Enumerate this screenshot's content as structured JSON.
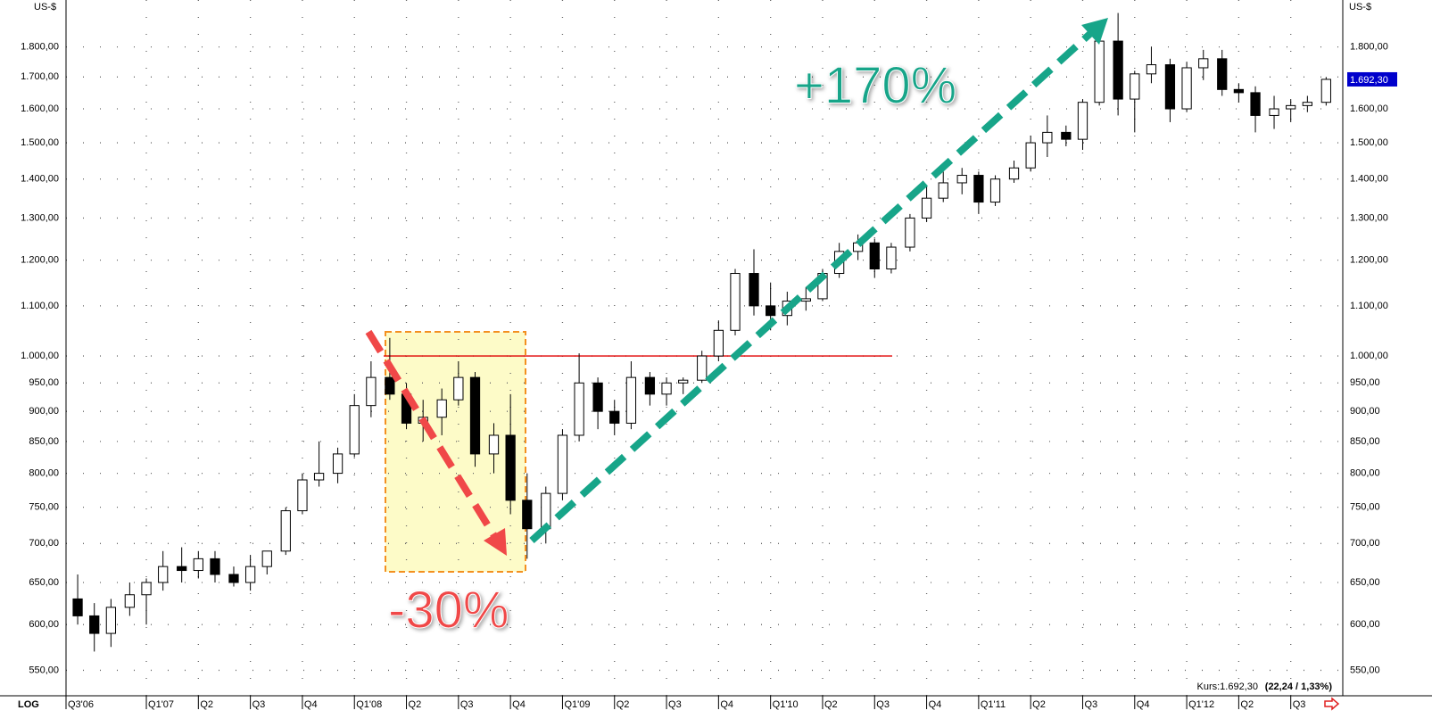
{
  "chart_data": {
    "type": "candlestick",
    "y_axis_label": "US-$",
    "scale_label": "LOG",
    "log_scale": true,
    "grid": true,
    "up_color": "#ffffff",
    "down_color": "#000000",
    "xlim": [
      2006.614,
      2012.75
    ],
    "ylim": [
      524,
      1968
    ],
    "xticks": [
      {
        "value": 2006.614,
        "label": "Q3'06"
      },
      {
        "value": 2007.0,
        "label": "Q1'07"
      },
      {
        "value": 2007.25,
        "label": "Q2"
      },
      {
        "value": 2007.5,
        "label": "Q3"
      },
      {
        "value": 2007.75,
        "label": "Q4"
      },
      {
        "value": 2008.0,
        "label": "Q1'08"
      },
      {
        "value": 2008.25,
        "label": "Q2"
      },
      {
        "value": 2008.5,
        "label": "Q3"
      },
      {
        "value": 2008.75,
        "label": "Q4"
      },
      {
        "value": 2009.0,
        "label": "Q1'09"
      },
      {
        "value": 2009.25,
        "label": "Q2"
      },
      {
        "value": 2009.5,
        "label": "Q3"
      },
      {
        "value": 2009.75,
        "label": "Q4"
      },
      {
        "value": 2010.0,
        "label": "Q1'10"
      },
      {
        "value": 2010.25,
        "label": "Q2"
      },
      {
        "value": 2010.5,
        "label": "Q3"
      },
      {
        "value": 2010.75,
        "label": "Q4"
      },
      {
        "value": 2011.0,
        "label": "Q1'11"
      },
      {
        "value": 2011.25,
        "label": "Q2"
      },
      {
        "value": 2011.5,
        "label": "Q3"
      },
      {
        "value": 2011.75,
        "label": "Q4"
      },
      {
        "value": 2012.0,
        "label": "Q1'12"
      },
      {
        "value": 2012.25,
        "label": "Q2"
      },
      {
        "value": 2012.5,
        "label": "Q3"
      }
    ],
    "yticks": [
      {
        "value": 550,
        "label": "550,00"
      },
      {
        "value": 600,
        "label": "600,00"
      },
      {
        "value": 650,
        "label": "650,00"
      },
      {
        "value": 700,
        "label": "700,00"
      },
      {
        "value": 750,
        "label": "750,00"
      },
      {
        "value": 800,
        "label": "800,00"
      },
      {
        "value": 850,
        "label": "850,00"
      },
      {
        "value": 900,
        "label": "900,00"
      },
      {
        "value": 950,
        "label": "950,00"
      },
      {
        "value": 1000,
        "label": "1.000,00"
      },
      {
        "value": 1100,
        "label": "1.100,00"
      },
      {
        "value": 1200,
        "label": "1.200,00"
      },
      {
        "value": 1300,
        "label": "1.300,00"
      },
      {
        "value": 1400,
        "label": "1.400,00"
      },
      {
        "value": 1500,
        "label": "1.500,00"
      },
      {
        "value": 1600,
        "label": "1.600,00"
      },
      {
        "value": 1700,
        "label": "1.700,00"
      },
      {
        "value": 1800,
        "label": "1.800,00"
      }
    ],
    "x": [
      2006.67,
      2006.75,
      2006.83,
      2006.92,
      2007.0,
      2007.08,
      2007.17,
      2007.25,
      2007.33,
      2007.42,
      2007.5,
      2007.58,
      2007.67,
      2007.75,
      2007.83,
      2007.92,
      2008.0,
      2008.08,
      2008.17,
      2008.25,
      2008.33,
      2008.42,
      2008.5,
      2008.58,
      2008.67,
      2008.75,
      2008.83,
      2008.92,
      2009.0,
      2009.08,
      2009.17,
      2009.25,
      2009.33,
      2009.42,
      2009.5,
      2009.58,
      2009.67,
      2009.75,
      2009.83,
      2009.92,
      2010.0,
      2010.08,
      2010.17,
      2010.25,
      2010.33,
      2010.42,
      2010.5,
      2010.58,
      2010.67,
      2010.75,
      2010.83,
      2010.92,
      2011.0,
      2011.08,
      2011.17,
      2011.25,
      2011.33,
      2011.42,
      2011.5,
      2011.58,
      2011.67,
      2011.75,
      2011.83,
      2011.92,
      2012.0,
      2012.08,
      2012.17,
      2012.25,
      2012.33,
      2012.42,
      2012.5,
      2012.58,
      2012.67
    ],
    "open": [
      630,
      610,
      590,
      620,
      635,
      650,
      670,
      665,
      680,
      660,
      650,
      670,
      690,
      745,
      790,
      800,
      830,
      910,
      960,
      930,
      880,
      890,
      920,
      960,
      830,
      860,
      760,
      720,
      770,
      860,
      950,
      900,
      880,
      960,
      930,
      950,
      955,
      1000,
      1050,
      1170,
      1100,
      1080,
      1110,
      1115,
      1170,
      1220,
      1240,
      1180,
      1230,
      1300,
      1350,
      1390,
      1410,
      1340,
      1400,
      1430,
      1500,
      1530,
      1510,
      1620,
      1820,
      1630,
      1710,
      1740,
      1600,
      1730,
      1760,
      1660,
      1650,
      1580,
      1600,
      1610,
      1620
    ],
    "high": [
      660,
      625,
      630,
      650,
      655,
      690,
      695,
      690,
      690,
      670,
      685,
      690,
      750,
      800,
      850,
      840,
      930,
      990,
      1035,
      950,
      920,
      940,
      990,
      970,
      880,
      930,
      800,
      780,
      870,
      1005,
      960,
      920,
      990,
      970,
      960,
      960,
      1010,
      1070,
      1180,
      1225,
      1150,
      1130,
      1140,
      1180,
      1240,
      1260,
      1250,
      1240,
      1310,
      1380,
      1420,
      1430,
      1420,
      1410,
      1450,
      1520,
      1580,
      1550,
      1630,
      1830,
      1920,
      1720,
      1800,
      1760,
      1750,
      1790,
      1790,
      1680,
      1670,
      1640,
      1630,
      1640,
      1700
    ],
    "low": [
      600,
      570,
      575,
      610,
      600,
      640,
      650,
      655,
      650,
      645,
      640,
      660,
      685,
      740,
      780,
      785,
      825,
      890,
      920,
      870,
      850,
      860,
      910,
      810,
      800,
      740,
      680,
      700,
      760,
      850,
      870,
      860,
      870,
      910,
      910,
      930,
      950,
      990,
      1040,
      1080,
      1050,
      1060,
      1090,
      1110,
      1160,
      1200,
      1160,
      1170,
      1220,
      1290,
      1340,
      1360,
      1310,
      1330,
      1390,
      1420,
      1460,
      1490,
      1480,
      1610,
      1580,
      1530,
      1680,
      1560,
      1590,
      1690,
      1640,
      1620,
      1530,
      1540,
      1560,
      1590,
      1610
    ],
    "close": [
      610,
      590,
      620,
      635,
      650,
      670,
      665,
      680,
      660,
      650,
      670,
      690,
      745,
      790,
      800,
      830,
      910,
      960,
      930,
      880,
      890,
      920,
      960,
      830,
      860,
      760,
      720,
      770,
      860,
      950,
      900,
      880,
      960,
      930,
      950,
      955,
      1000,
      1050,
      1170,
      1100,
      1080,
      1110,
      1115,
      1170,
      1220,
      1240,
      1180,
      1230,
      1300,
      1350,
      1390,
      1410,
      1340,
      1400,
      1430,
      1500,
      1530,
      1510,
      1620,
      1820,
      1630,
      1710,
      1740,
      1600,
      1730,
      1760,
      1660,
      1650,
      1580,
      1600,
      1610,
      1620,
      1692.3
    ],
    "last_label": "1.692,30",
    "reference_line": {
      "value": 1000,
      "color": "#e00000"
    },
    "annotations": [
      {
        "text": "+170%",
        "color": "#17a589"
      },
      {
        "text": "-30%",
        "color": "#f04848"
      }
    ],
    "kurs_label": "Kurs:1.692,30",
    "kurs_change": "(22,24 / 1,33%)"
  }
}
